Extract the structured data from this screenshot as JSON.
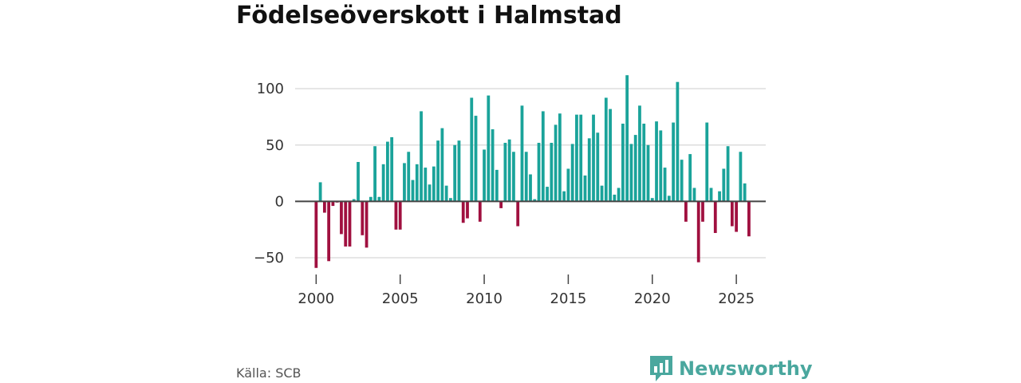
{
  "chart_data": {
    "type": "bar",
    "title": "Födelseöverskott i Halmstad",
    "xlabel": "",
    "ylabel": "",
    "x_start": 2000.0,
    "x_step": 0.25,
    "values": [
      -59,
      17,
      -10,
      -53,
      -4,
      -1,
      -29,
      -40,
      -40,
      2,
      35,
      -30,
      -41,
      4,
      49,
      4,
      33,
      53,
      57,
      -25,
      -25,
      34,
      44,
      19,
      33,
      80,
      30,
      15,
      31,
      54,
      65,
      14,
      3,
      50,
      54,
      -19,
      -15,
      92,
      76,
      -18,
      46,
      94,
      64,
      28,
      -6,
      52,
      55,
      44,
      -22,
      85,
      44,
      24,
      2,
      52,
      80,
      13,
      52,
      68,
      78,
      9,
      29,
      51,
      77,
      77,
      23,
      56,
      77,
      61,
      14,
      92,
      82,
      6,
      12,
      69,
      112,
      51,
      59,
      85,
      69,
      50,
      3,
      71,
      63,
      30,
      5,
      70,
      106,
      37,
      -18,
      42,
      12,
      -54,
      -18,
      70,
      12,
      -28,
      9,
      29,
      49,
      -22,
      -27,
      44,
      16,
      -31
    ],
    "ylim": [
      -62,
      115
    ],
    "xlim": [
      1998.75,
      2026.75
    ],
    "yticks": [
      100,
      50,
      0,
      -50
    ],
    "ytick_labels": [
      "100",
      "50",
      "0",
      "−50"
    ],
    "xticks": [
      2000,
      2005,
      2010,
      2015,
      2020,
      2025
    ],
    "xtick_labels": [
      "2000",
      "2005",
      "2010",
      "2015",
      "2020",
      "2025"
    ],
    "grid": true,
    "legend": "none",
    "colors": {
      "positive": "#1aa39a",
      "negative": "#a0103f",
      "zero_line": "#444444",
      "grid": "#dddddd"
    }
  },
  "source": "Källa: SCB",
  "brand": {
    "name": "Newsworthy",
    "icon": "bar-chart-badge-icon",
    "color": "#4aa79e"
  }
}
